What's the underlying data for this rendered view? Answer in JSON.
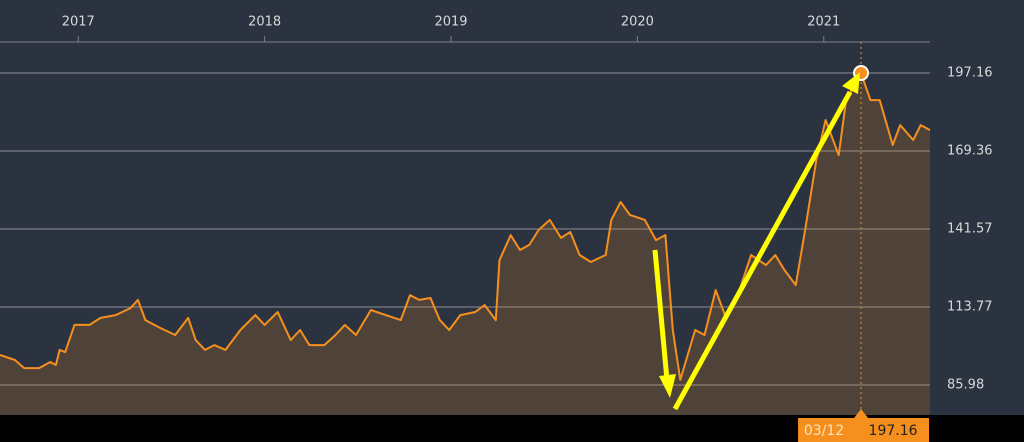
{
  "chart_data": {
    "type": "area",
    "x": [
      2016.58,
      2016.66,
      2016.71,
      2016.79,
      2016.85,
      2016.88,
      2016.9,
      2016.93,
      2016.98,
      2017.06,
      2017.12,
      2017.2,
      2017.28,
      2017.32,
      2017.36,
      2017.44,
      2017.52,
      2017.59,
      2017.63,
      2017.68,
      2017.73,
      2017.79,
      2017.87,
      2017.95,
      2018.0,
      2018.07,
      2018.14,
      2018.19,
      2018.24,
      2018.32,
      2018.38,
      2018.43,
      2018.49,
      2018.57,
      2018.65,
      2018.73,
      2018.78,
      2018.83,
      2018.89,
      2018.94,
      2018.99,
      2019.05,
      2019.13,
      2019.18,
      2019.24,
      2019.26,
      2019.32,
      2019.37,
      2019.42,
      2019.47,
      2019.53,
      2019.59,
      2019.64,
      2019.69,
      2019.75,
      2019.83,
      2019.86,
      2019.91,
      2019.96,
      2020.04,
      2020.1,
      2020.15,
      2020.19,
      2020.23,
      2020.27,
      2020.31,
      2020.36,
      2020.42,
      2020.47,
      2020.53,
      2020.61,
      2020.69,
      2020.74,
      2020.79,
      2020.85,
      2020.9,
      2020.96,
      2021.01,
      2021.08,
      2021.12,
      2021.2,
      2021.25,
      2021.3,
      2021.37,
      2021.41,
      2021.48,
      2021.52,
      2021.57
    ],
    "series": [
      {
        "color": "#f5901e",
        "values": [
          96.7,
          94.9,
          92.0,
          92.0,
          94.2,
          93.1,
          98.5,
          97.7,
          107.4,
          107.4,
          109.9,
          110.9,
          113.4,
          116.3,
          109.1,
          106.3,
          103.8,
          109.9,
          102.0,
          98.5,
          100.2,
          98.5,
          105.6,
          110.9,
          107.4,
          112.0,
          102.0,
          105.6,
          100.2,
          100.2,
          103.8,
          107.4,
          103.8,
          112.7,
          110.9,
          109.1,
          118.0,
          116.3,
          117.0,
          109.1,
          105.6,
          110.9,
          112.0,
          114.5,
          109.1,
          130.5,
          139.4,
          134.1,
          135.9,
          141.2,
          144.8,
          138.4,
          140.5,
          132.3,
          129.8,
          132.3,
          144.8,
          151.2,
          146.6,
          144.8,
          137.6,
          139.4,
          105.6,
          87.8,
          96.7,
          105.6,
          103.8,
          119.8,
          110.9,
          116.3,
          132.3,
          128.7,
          132.3,
          126.9,
          121.6,
          141.2,
          166.1,
          180.4,
          167.9,
          187.5,
          197.16,
          187.5,
          187.5,
          171.5,
          178.6,
          173.3,
          178.6,
          176.8
        ]
      }
    ],
    "xlim": [
      2016.58,
      2021.57
    ],
    "xticks": [
      2017,
      2018,
      2019,
      2020,
      2021
    ],
    "ylim": [
      75.3,
      208.2
    ],
    "yticks": [
      85.98,
      113.77,
      141.57,
      169.36,
      197.16
    ],
    "grid": true,
    "highlight": {
      "x": 2021.2,
      "date": "03/12",
      "value": 197.16
    }
  }
}
